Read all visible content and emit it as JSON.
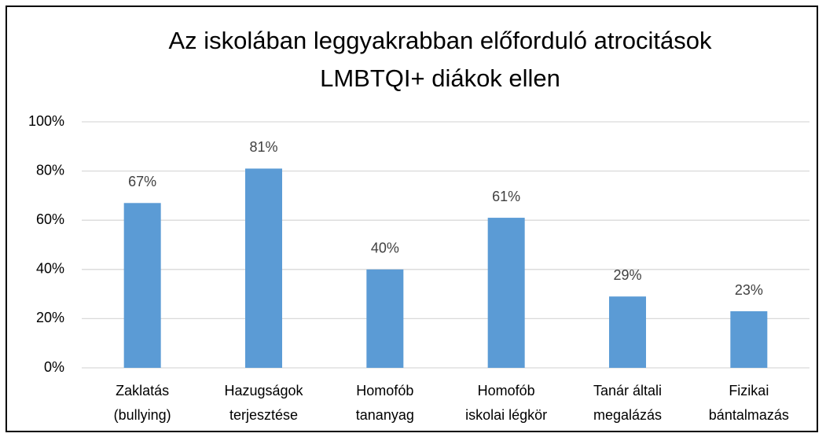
{
  "chart_data": {
    "type": "bar",
    "title": "Az iskolában leggyakrabban előforduló atrocitások\nLMBTQI+ diákok ellen",
    "categories": [
      "Zaklatás\n(bullying)",
      "Hazugságok\nterjesztése",
      "Homofób\ntananyag",
      "Homofób\niskolai légkör",
      "Tanár általi\nmegalázás",
      "Fizikai\nbántalmazás"
    ],
    "values": [
      67,
      81,
      40,
      61,
      29,
      23
    ],
    "value_labels": [
      "67%",
      "81%",
      "40%",
      "61%",
      "29%",
      "23%"
    ],
    "color": "#5b9bd5",
    "ylim": [
      0,
      100
    ],
    "yticks": [
      {
        "value": 0,
        "label": "0%"
      },
      {
        "value": 20,
        "label": "20%"
      },
      {
        "value": 40,
        "label": "40%"
      },
      {
        "value": 60,
        "label": "60%"
      },
      {
        "value": 80,
        "label": "80%"
      },
      {
        "value": 100,
        "label": "100%"
      }
    ],
    "grid": true
  }
}
